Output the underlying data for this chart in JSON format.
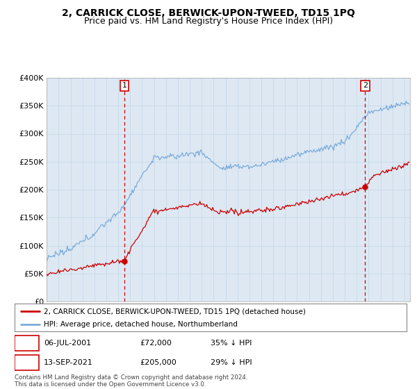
{
  "title": "2, CARRICK CLOSE, BERWICK-UPON-TWEED, TD15 1PQ",
  "subtitle": "Price paid vs. HM Land Registry's House Price Index (HPI)",
  "ylim": [
    0,
    400000
  ],
  "yticks": [
    0,
    50000,
    100000,
    150000,
    200000,
    250000,
    300000,
    350000,
    400000
  ],
  "ytick_labels": [
    "£0",
    "£50K",
    "£100K",
    "£150K",
    "£200K",
    "£250K",
    "£300K",
    "£350K",
    "£400K"
  ],
  "xlim_start": 1995.0,
  "xlim_end": 2025.5,
  "sale1_date": 2001.51,
  "sale1_price": 72000,
  "sale1_label": "1",
  "sale2_date": 2021.71,
  "sale2_price": 205000,
  "sale2_label": "2",
  "red_line_color": "#cc0000",
  "blue_line_color": "#7aabdb",
  "vline_color": "#cc0000",
  "marker_box_color": "#cc0000",
  "grid_color": "#c8d8e8",
  "bg_color": "#dde8f3",
  "legend_label_red": "2, CARRICK CLOSE, BERWICK-UPON-TWEED, TD15 1PQ (detached house)",
  "legend_label_blue": "HPI: Average price, detached house, Northumberland",
  "footer": "Contains HM Land Registry data © Crown copyright and database right 2024.\nThis data is licensed under the Open Government Licence v3.0.",
  "title_fontsize": 10,
  "subtitle_fontsize": 9
}
